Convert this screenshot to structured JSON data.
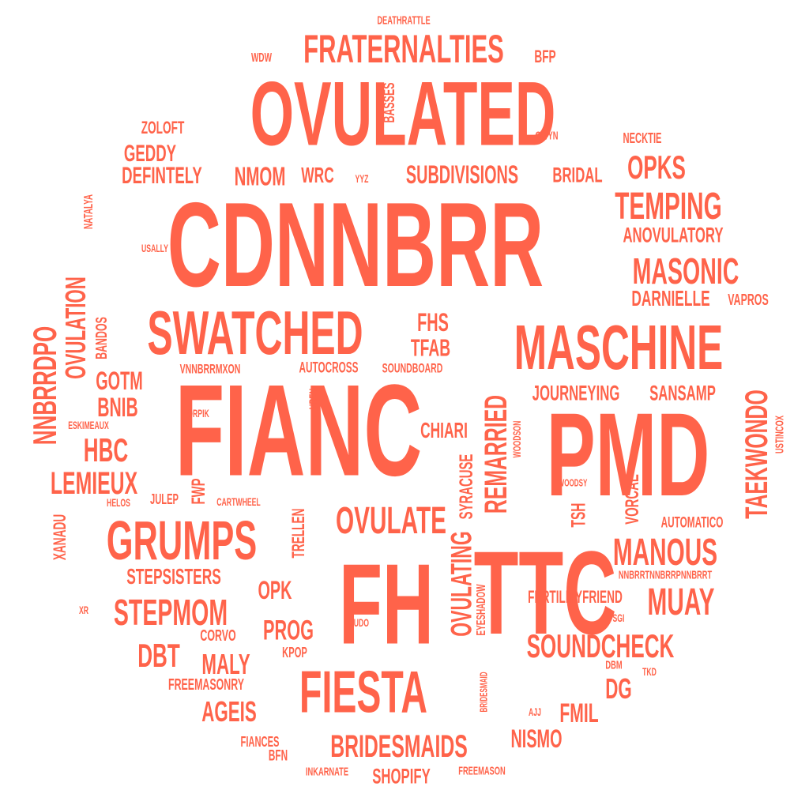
{
  "accent_color": "#FF634A",
  "words": [
    "DEATHRATTLE",
    "WDW",
    "FRATERNALTIES",
    "BFP",
    "OVULATED",
    "BASSES",
    "ZOLOFT",
    "GWYN",
    "NECKTIE",
    "GEDDY",
    "DEFINTELY",
    "NMOM",
    "WRC",
    "YYZ",
    "SUBDIVISIONS",
    "BRIDAL",
    "OPKS",
    "NATALYA",
    "CDNNBRR",
    "TEMPING",
    "ANOVULATORY",
    "USALLY",
    "OVULATION",
    "MASONIC",
    "NNBRRDPO",
    "DARNIELLE",
    "VAPROS",
    "SWATCHED",
    "BANDOS",
    "FHS",
    "TFAB",
    "MASCHINE",
    "VNNBRRMXON",
    "AUTOCROSS",
    "SOUNDBOARD",
    "GOTM",
    "FIANC",
    "JOURNEYING",
    "SANSAMP",
    "BNIB",
    "UREN",
    "ORPIK",
    "TAEKWONDO",
    "USTINCOX",
    "ESKIMEAUX",
    "CHIARI",
    "REMARRIED",
    "HBC",
    "WOODSON",
    "PMD",
    "SYRACUSE",
    "LEMIEUX",
    "FWP",
    "WOODSY",
    "VORCAE",
    "XANADU",
    "HELOS",
    "JULEP",
    "CARTWHEEL",
    "TRELLEN",
    "OVULATE",
    "TSH",
    "AUTOMATICO",
    "GRUMPS",
    "TTC",
    "MANOUS",
    "OVULATING",
    "NNBRRTNNBRRPNNBRRT",
    "STEPSISTERS",
    "OPK",
    "EYESHADOW",
    "FH",
    "FERTILITYFRIEND",
    "MUAY",
    "XR",
    "STEPMOM",
    "SGI",
    "CORVO",
    "PROG",
    "JUDO",
    "SOUNDCHECK",
    "DBT",
    "MALY",
    "KPOP",
    "DBM",
    "TKD",
    "BRIDESMAID",
    "FREEMASONRY",
    "FIESTA",
    "DG",
    "AGEIS",
    "AJJ",
    "FMIL",
    "FIANCES",
    "BRIDESMAIDS",
    "NISMO",
    "BFN",
    "INKARNATE",
    "SHOPIFY",
    "FREEMASON"
  ]
}
